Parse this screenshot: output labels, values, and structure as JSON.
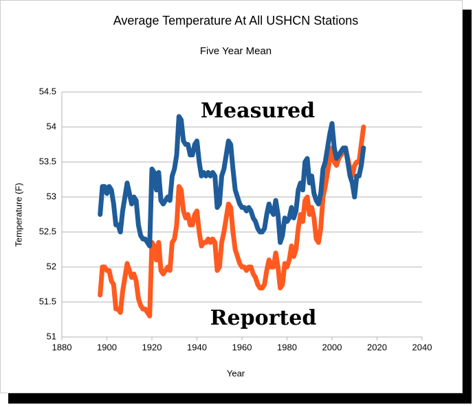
{
  "chart_data": {
    "type": "line",
    "title": "Average Temperature At All USHCN Stations",
    "subtitle": "Five Year Mean",
    "xlabel": "Year",
    "ylabel": "Temperature (F)",
    "annotations": [
      "Measured",
      "Reported"
    ],
    "x": [
      1897,
      1898,
      1899,
      1900,
      1901,
      1902,
      1903,
      1904,
      1905,
      1906,
      1907,
      1908,
      1909,
      1910,
      1911,
      1912,
      1913,
      1914,
      1915,
      1916,
      1917,
      1918,
      1919,
      1920,
      1921,
      1922,
      1923,
      1924,
      1925,
      1926,
      1927,
      1928,
      1929,
      1930,
      1931,
      1932,
      1933,
      1934,
      1935,
      1936,
      1937,
      1938,
      1939,
      1940,
      1941,
      1942,
      1943,
      1944,
      1945,
      1946,
      1947,
      1948,
      1949,
      1950,
      1951,
      1952,
      1953,
      1954,
      1955,
      1956,
      1957,
      1958,
      1959,
      1960,
      1961,
      1962,
      1963,
      1964,
      1965,
      1966,
      1967,
      1968,
      1969,
      1970,
      1971,
      1972,
      1973,
      1974,
      1975,
      1976,
      1977,
      1978,
      1979,
      1980,
      1981,
      1982,
      1983,
      1984,
      1985,
      1986,
      1987,
      1988,
      1989,
      1990,
      1991,
      1992,
      1993,
      1994,
      1995,
      1996,
      1997,
      1998,
      1999,
      2000,
      2001,
      2002,
      2003,
      2004,
      2005,
      2006,
      2007,
      2008,
      2009,
      2010,
      2011,
      2012,
      2013,
      2014
    ],
    "series": [
      {
        "name": "Measured",
        "color": "#1f5c99",
        "values": [
          52.75,
          53.15,
          53.15,
          53.05,
          53.15,
          53.1,
          52.9,
          52.6,
          52.6,
          52.5,
          52.8,
          53.0,
          53.2,
          53.05,
          52.9,
          53.0,
          52.95,
          52.6,
          52.45,
          52.4,
          52.4,
          52.35,
          52.3,
          53.4,
          53.35,
          53.1,
          53.35,
          52.95,
          52.9,
          52.95,
          53.0,
          52.95,
          53.3,
          53.4,
          53.6,
          54.15,
          54.1,
          53.8,
          53.75,
          53.75,
          53.6,
          53.6,
          53.75,
          53.8,
          53.5,
          53.3,
          53.35,
          53.3,
          53.35,
          53.3,
          53.35,
          53.3,
          52.85,
          52.9,
          53.3,
          53.4,
          53.6,
          53.8,
          53.75,
          53.4,
          53.1,
          53.0,
          52.9,
          52.85,
          52.85,
          52.8,
          52.85,
          52.8,
          52.7,
          52.65,
          52.55,
          52.5,
          52.5,
          52.55,
          52.75,
          52.9,
          52.8,
          52.75,
          52.95,
          52.75,
          52.35,
          52.45,
          52.7,
          52.65,
          52.7,
          52.85,
          52.7,
          52.8,
          53.1,
          53.2,
          53.1,
          53.5,
          53.55,
          53.2,
          53.3,
          53.05,
          52.95,
          52.9,
          53.05,
          53.4,
          53.5,
          53.7,
          53.9,
          54.05,
          53.7,
          53.55,
          53.6,
          53.65,
          53.7,
          53.7,
          53.5,
          53.3,
          53.2,
          53.0,
          53.3,
          53.3,
          53.45,
          53.7
        ]
      },
      {
        "name": "Reported",
        "color": "#ff5a1f",
        "values": [
          51.6,
          52.0,
          52.0,
          51.95,
          51.95,
          51.8,
          51.75,
          51.4,
          51.4,
          51.35,
          51.65,
          51.85,
          52.05,
          51.95,
          51.85,
          51.9,
          51.8,
          51.55,
          51.45,
          51.4,
          51.4,
          51.35,
          51.3,
          52.35,
          52.3,
          52.1,
          52.35,
          51.95,
          51.9,
          51.95,
          52.0,
          51.95,
          52.35,
          52.4,
          52.6,
          53.15,
          53.1,
          52.8,
          52.7,
          52.75,
          52.6,
          52.6,
          52.75,
          52.8,
          52.5,
          52.3,
          52.35,
          52.35,
          52.4,
          52.35,
          52.4,
          52.35,
          51.95,
          52.0,
          52.35,
          52.5,
          52.7,
          52.9,
          52.85,
          52.5,
          52.25,
          52.15,
          52.05,
          52.0,
          52.0,
          51.95,
          52.0,
          52.0,
          51.9,
          51.85,
          51.75,
          51.7,
          51.7,
          51.75,
          51.95,
          52.1,
          52.0,
          52.0,
          52.2,
          52.0,
          51.7,
          51.75,
          52.05,
          52.0,
          52.1,
          52.3,
          52.15,
          52.25,
          52.55,
          52.75,
          52.65,
          52.95,
          53.0,
          52.75,
          52.85,
          52.7,
          52.4,
          52.35,
          52.55,
          53.0,
          53.15,
          53.35,
          53.55,
          53.7,
          53.5,
          53.45,
          53.55,
          53.6,
          53.65,
          53.7,
          53.55,
          53.4,
          53.3,
          53.45,
          53.5,
          53.5,
          53.75,
          54.0
        ]
      }
    ],
    "xlim": [
      1880,
      2040
    ],
    "xticks": [
      1880,
      1900,
      1920,
      1940,
      1960,
      1980,
      2000,
      2020,
      2040
    ],
    "ylim": [
      51,
      54.5
    ],
    "yticks": [
      51,
      51.5,
      52,
      52.5,
      53,
      53.5,
      54,
      54.5
    ],
    "grid": true
  }
}
